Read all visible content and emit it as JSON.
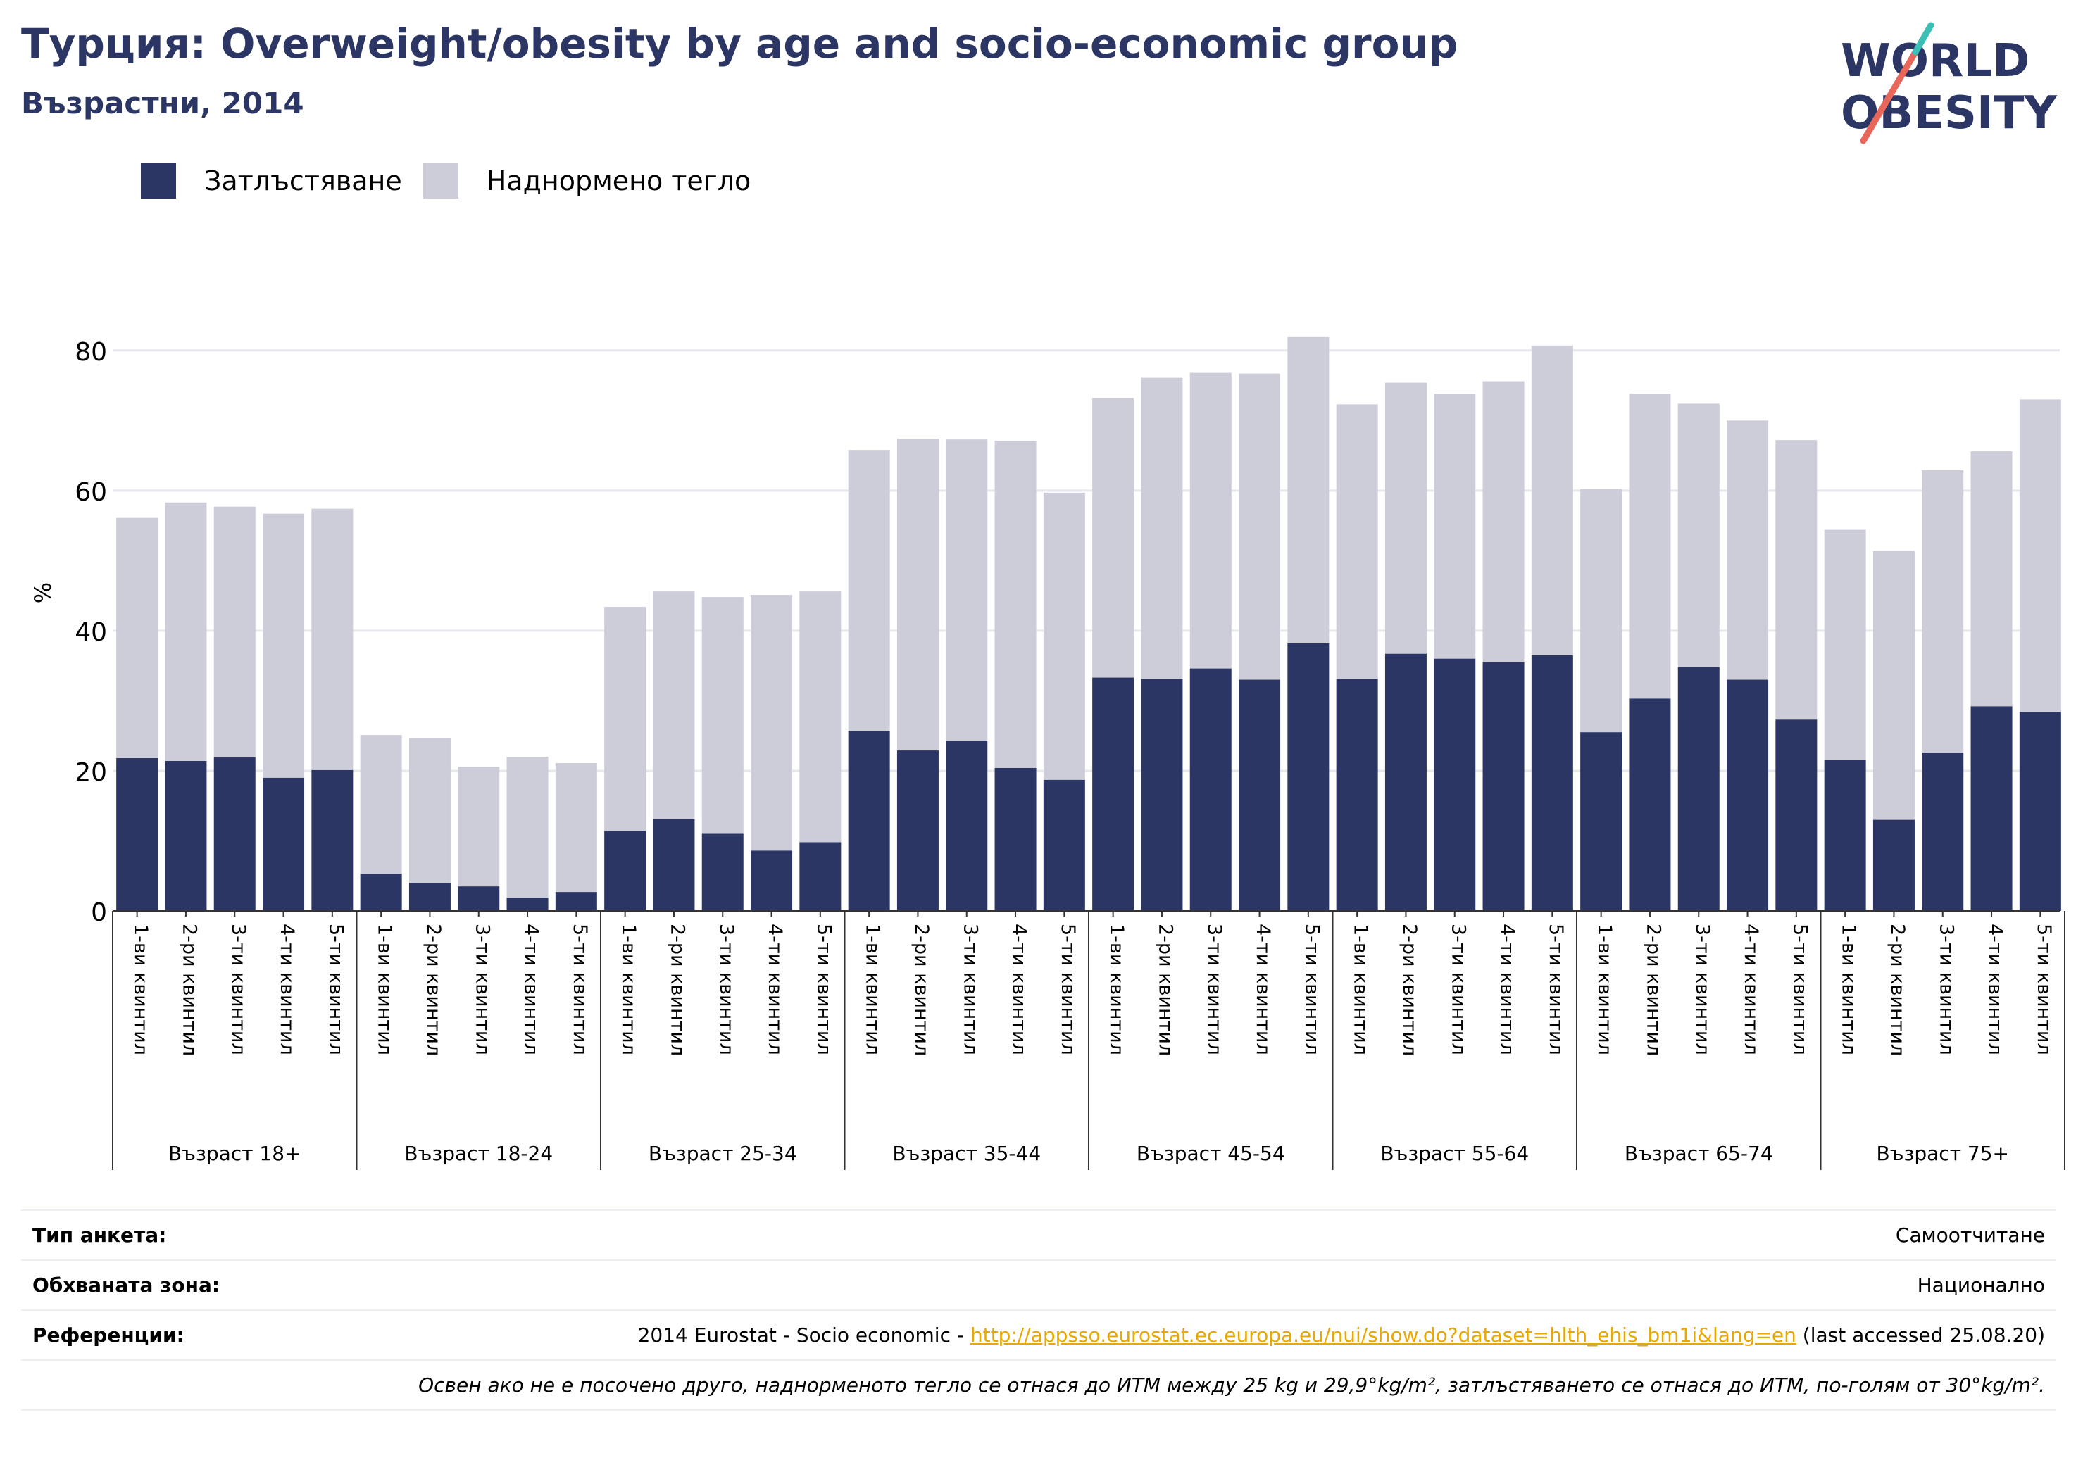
{
  "header": {
    "title": "Турция: Overweight/obesity by age and socio-economic group",
    "subtitle": "Възрастни, 2014"
  },
  "logo": {
    "line1": "WORLD",
    "line2": "OBESITY",
    "colors": {
      "navy": "#2b3664",
      "coral": "#e8675a",
      "teal": "#3cbfb4"
    }
  },
  "colors": {
    "obesity": "#2b3664",
    "overweight": "#cccdd9",
    "grid": "#e6e8ee",
    "axis": "#333333"
  },
  "chart_data": {
    "type": "bar",
    "stacked": true,
    "ylabel": "%",
    "ylim": [
      0,
      85
    ],
    "yticks": [
      0,
      20,
      40,
      60,
      80
    ],
    "grid": true,
    "legend_position": "top-left",
    "quintile_labels": [
      "1-ви квинтил",
      "2-ри квинтил",
      "3-ти квинтил",
      "4-ти квинтил",
      "5-ти квинтил"
    ],
    "groups": [
      "Възраст 18+",
      "Възраст 18-24",
      "Възраст 25-34",
      "Възраст 35-44",
      "Възраст 45-54",
      "Възраст 55-64",
      "Възраст 65-74",
      "Възраст 75+"
    ],
    "series": [
      {
        "name": "Затлъстяване",
        "values": [
          21.8,
          21.4,
          21.9,
          19.0,
          20.1,
          5.3,
          4.0,
          3.5,
          1.9,
          2.7,
          11.4,
          13.1,
          11.0,
          8.6,
          9.8,
          25.7,
          22.9,
          24.3,
          20.4,
          18.7,
          33.3,
          33.1,
          34.6,
          33.0,
          38.2,
          33.1,
          36.7,
          36.0,
          35.5,
          36.5,
          25.5,
          30.3,
          34.8,
          33.0,
          27.3,
          21.5,
          13.0,
          22.6,
          29.2,
          28.4
        ]
      },
      {
        "name": "Наднормено тегло",
        "values": [
          34.3,
          36.9,
          35.8,
          37.7,
          37.3,
          19.8,
          20.7,
          17.1,
          20.1,
          18.4,
          32.0,
          32.5,
          33.8,
          36.5,
          35.8,
          40.1,
          44.5,
          43.0,
          46.7,
          41.0,
          39.9,
          43.0,
          42.2,
          43.7,
          43.7,
          39.2,
          38.7,
          37.8,
          40.1,
          44.2,
          34.7,
          43.5,
          37.6,
          37.0,
          39.9,
          32.9,
          38.4,
          40.3,
          36.4,
          44.6
        ]
      }
    ]
  },
  "info": {
    "survey_type_label": "Тип анкета:",
    "survey_type_value": "Самоотчитане",
    "area_label": "Обхваната зона:",
    "area_value": "Национално",
    "references_label": "Референции:",
    "references_prefix": "2014 Eurostat - Socio economic - ",
    "references_link": "http://appsso.eurostat.ec.europa.eu/nui/show.do?dataset=hlth_ehis_bm1i&lang=en",
    "references_suffix": " (last accessed 25.08.20)",
    "note": "Освен ако не е посочено друго, наднорменото тегло се отнася до ИТМ между 25 kg и 29,9°kg/m², затлъстяването се отнася до ИТМ, по-голям от 30°kg/m²."
  }
}
